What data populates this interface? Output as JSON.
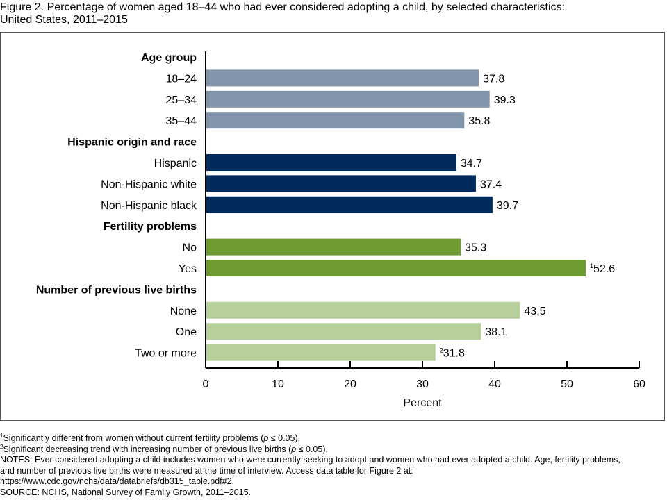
{
  "figure": {
    "title_line1": "Figure 2. Percentage of women aged 18–44 who had ever considered adopting a child, by selected characteristics:",
    "title_line2": "United States, 2011–2015"
  },
  "chart_data": {
    "type": "bar",
    "orientation": "horizontal",
    "title": "Percentage of women aged 18–44 who had ever considered adopting a child, by selected characteristics: United States, 2011–2015",
    "xlabel": "Percent",
    "ylabel": "",
    "xlim": [
      0,
      60
    ],
    "xticks": [
      0,
      10,
      20,
      30,
      40,
      50,
      60
    ],
    "grid": false,
    "legend": "none",
    "groups": [
      {
        "name": "Age group",
        "color": "#8294ab",
        "categories": [
          "18–24",
          "25–34",
          "35–44"
        ],
        "values": [
          37.8,
          39.3,
          35.8
        ],
        "markers": [
          "",
          "",
          ""
        ]
      },
      {
        "name": "Hispanic origin and race",
        "color": "#002b5c",
        "categories": [
          "Hispanic",
          "Non-Hispanic white",
          "Non-Hispanic black"
        ],
        "values": [
          34.7,
          37.4,
          39.7
        ],
        "markers": [
          "",
          "",
          ""
        ]
      },
      {
        "name": "Fertility problems",
        "color": "#6d9b31",
        "categories": [
          "No",
          "Yes"
        ],
        "values": [
          35.3,
          52.6
        ],
        "markers": [
          "",
          "1"
        ]
      },
      {
        "name": "Number of previous live births",
        "color": "#b7cf9b",
        "categories": [
          "None",
          "One",
          "Two or more"
        ],
        "values": [
          43.5,
          38.1,
          31.8
        ],
        "markers": [
          "",
          "",
          "2"
        ]
      }
    ]
  },
  "footnotes": {
    "fn1_marker": "1",
    "fn1_text_a": "Significantly different from women without current fertility problems (",
    "fn1_p": "p",
    "fn1_text_b": " ≤ 0.05).",
    "fn2_marker": "2",
    "fn2_text_a": "Significant decreasing trend with increasing number of previous live births (",
    "fn2_p": "p",
    "fn2_text_b": " ≤ 0.05).",
    "notes_line1": "NOTES: Ever considered adopting a child includes women who were currently seeking to adopt and women who had ever adopted a child. Age, fertility problems,",
    "notes_line2": "and number of previous live births were measured at the time of interview. Access data table for Figure 2 at:",
    "notes_line3": "https://www.cdc.gov/nchs/data/databriefs/db315_table.pdf#2.",
    "source": "SOURCE: NCHS, National Survey of Family Growth, 2011–2015."
  }
}
